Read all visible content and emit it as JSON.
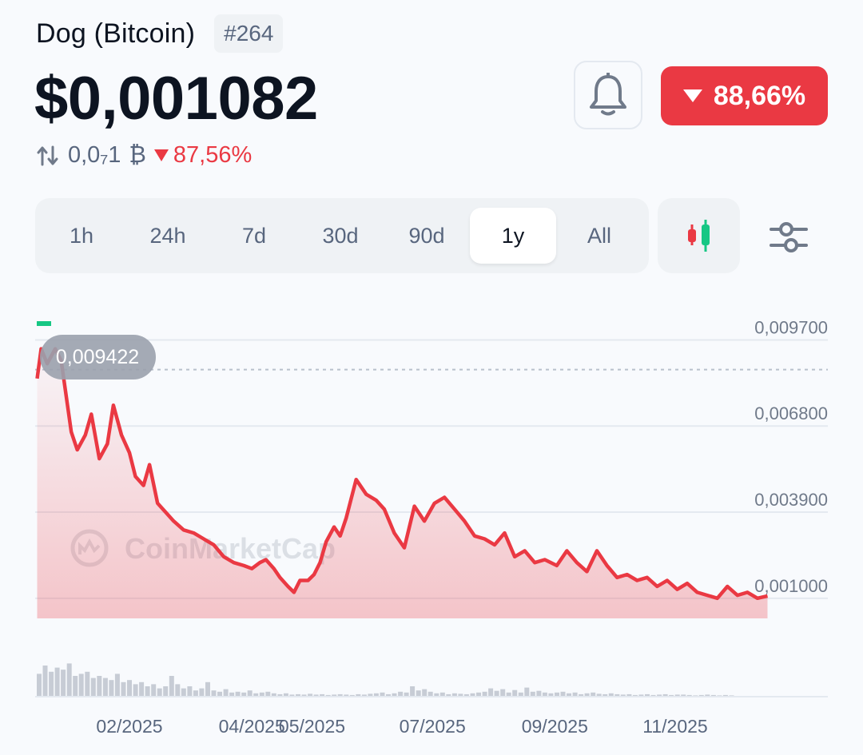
{
  "coin": {
    "name": "Dog (Bitcoin)",
    "rank": "#264",
    "price": "$0,001082",
    "btc_price": "0,0₇1",
    "btc_symbol": "₿",
    "btc_change": "87,56%",
    "change_1y": "88,66%"
  },
  "icons": {
    "swap": "swap-arrows-icon",
    "bell": "bell-icon",
    "candles": "candlestick-icon",
    "settings": "sliders-icon"
  },
  "colors": {
    "down": "#ea3943",
    "up": "#16c784",
    "text_primary": "#0d1421",
    "text_secondary": "#58667e"
  },
  "range_tabs": [
    "1h",
    "24h",
    "7d",
    "30d",
    "90d",
    "1y",
    "All"
  ],
  "active_range": "1y",
  "chart_data": {
    "type": "line",
    "watermark": "CoinMarketCap",
    "tooltip_value": "0,009422",
    "ylim": [
      0.0,
      0.0106
    ],
    "yticks": [
      {
        "value": 0.0097,
        "label": "0,009700"
      },
      {
        "value": 0.0068,
        "label": "0,006800"
      },
      {
        "value": 0.0039,
        "label": "0,003900"
      },
      {
        "value": 0.001,
        "label": "0,001000"
      }
    ],
    "reference_line": 0.0087,
    "x_range": [
      "2024-12-15",
      "2025-12-18"
    ],
    "xticks": [
      {
        "date": "2025-01-31",
        "label": "02/2025"
      },
      {
        "date": "2025-04-02",
        "label": "04/2025"
      },
      {
        "date": "2025-05-02",
        "label": "05/2025"
      },
      {
        "date": "2025-07-01",
        "label": "07/2025"
      },
      {
        "date": "2025-08-31",
        "label": "09/2025"
      },
      {
        "date": "2025-10-30",
        "label": "11/2025"
      }
    ],
    "series": [
      {
        "x": [
          "2024-12-16",
          "2024-12-18",
          "2024-12-21",
          "2024-12-25",
          "2024-12-28",
          "2025-01-02",
          "2025-01-05",
          "2025-01-09",
          "2025-01-12",
          "2025-01-16",
          "2025-01-20",
          "2025-01-23",
          "2025-01-27",
          "2025-01-31",
          "2025-02-03",
          "2025-02-07",
          "2025-02-10",
          "2025-02-14",
          "2025-02-18",
          "2025-02-22",
          "2025-02-27",
          "2025-03-04",
          "2025-03-09",
          "2025-03-14",
          "2025-03-19",
          "2025-03-24",
          "2025-03-29",
          "2025-04-02",
          "2025-04-06",
          "2025-04-09",
          "2025-04-13",
          "2025-04-16",
          "2025-04-20",
          "2025-04-23",
          "2025-04-26",
          "2025-04-30",
          "2025-05-03",
          "2025-05-06",
          "2025-05-09",
          "2025-05-13",
          "2025-05-16",
          "2025-05-19",
          "2025-05-24",
          "2025-05-29",
          "2025-06-03",
          "2025-06-07",
          "2025-06-12",
          "2025-06-17",
          "2025-06-22",
          "2025-06-27",
          "2025-07-02",
          "2025-07-07",
          "2025-07-12",
          "2025-07-17",
          "2025-07-22",
          "2025-07-27",
          "2025-08-01",
          "2025-08-06",
          "2025-08-11",
          "2025-08-16",
          "2025-08-21",
          "2025-08-26",
          "2025-09-01",
          "2025-09-06",
          "2025-09-11",
          "2025-09-16",
          "2025-09-21",
          "2025-09-26",
          "2025-10-01",
          "2025-10-06",
          "2025-10-11",
          "2025-10-16",
          "2025-10-21",
          "2025-10-26",
          "2025-10-31",
          "2025-11-05",
          "2025-11-10",
          "2025-11-15",
          "2025-11-20",
          "2025-11-25",
          "2025-11-30",
          "2025-12-05",
          "2025-12-10",
          "2025-12-15"
        ],
        "y": [
          0.0084,
          0.0094,
          0.0089,
          0.0094,
          0.009,
          0.0066,
          0.006,
          0.0065,
          0.0072,
          0.0057,
          0.0062,
          0.0075,
          0.0065,
          0.0059,
          0.0051,
          0.0048,
          0.0055,
          0.0042,
          0.0039,
          0.0036,
          0.0033,
          0.0032,
          0.003,
          0.0028,
          0.0024,
          0.0022,
          0.0021,
          0.002,
          0.0022,
          0.0023,
          0.002,
          0.0017,
          0.0014,
          0.0012,
          0.0016,
          0.0016,
          0.0018,
          0.0022,
          0.0029,
          0.0034,
          0.0031,
          0.0037,
          0.005,
          0.0045,
          0.0043,
          0.004,
          0.0032,
          0.0027,
          0.0041,
          0.0036,
          0.0042,
          0.0044,
          0.004,
          0.0036,
          0.0031,
          0.003,
          0.0028,
          0.0032,
          0.0024,
          0.0026,
          0.0022,
          0.0023,
          0.0021,
          0.0026,
          0.0022,
          0.0019,
          0.0026,
          0.0021,
          0.0017,
          0.0018,
          0.0016,
          0.0017,
          0.0014,
          0.0016,
          0.0013,
          0.0015,
          0.0012,
          0.0011,
          0.001,
          0.0014,
          0.0011,
          0.0012,
          0.001,
          0.00108
        ]
      }
    ],
    "volume": [
      0.55,
      0.75,
      0.6,
      0.7,
      0.65,
      0.8,
      0.5,
      0.55,
      0.6,
      0.45,
      0.5,
      0.45,
      0.4,
      0.55,
      0.35,
      0.4,
      0.3,
      0.35,
      0.25,
      0.3,
      0.2,
      0.25,
      0.5,
      0.3,
      0.2,
      0.25,
      0.15,
      0.2,
      0.35,
      0.15,
      0.12,
      0.18,
      0.1,
      0.12,
      0.1,
      0.15,
      0.08,
      0.1,
      0.12,
      0.08,
      0.06,
      0.08,
      0.05,
      0.06,
      0.05,
      0.07,
      0.05,
      0.06,
      0.04,
      0.05,
      0.06,
      0.05,
      0.04,
      0.06,
      0.05,
      0.07,
      0.08,
      0.1,
      0.06,
      0.08,
      0.12,
      0.1,
      0.25,
      0.15,
      0.18,
      0.12,
      0.08,
      0.1,
      0.06,
      0.08,
      0.07,
      0.06,
      0.08,
      0.1,
      0.12,
      0.2,
      0.14,
      0.18,
      0.1,
      0.16,
      0.1,
      0.22,
      0.12,
      0.14,
      0.1,
      0.08,
      0.1,
      0.12,
      0.08,
      0.1,
      0.06,
      0.08,
      0.1,
      0.07,
      0.06,
      0.08,
      0.06,
      0.05,
      0.06,
      0.04,
      0.05,
      0.06,
      0.04,
      0.05,
      0.06,
      0.04,
      0.05,
      0.05,
      0.04,
      0.03,
      0.04,
      0.05,
      0.04,
      0.03,
      0.04,
      0.03
    ]
  }
}
